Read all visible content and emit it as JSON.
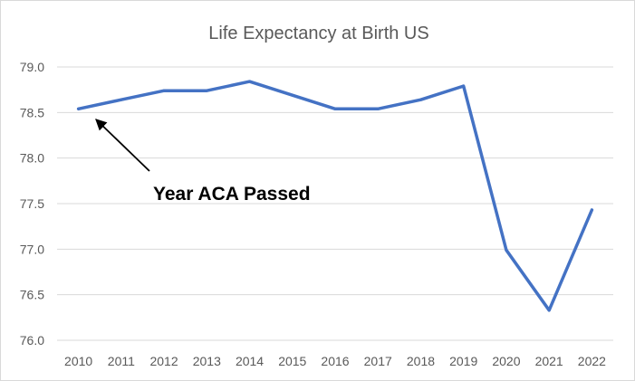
{
  "chart_data": {
    "type": "line",
    "title": "Life Expectancy at Birth US",
    "xlabel": "",
    "ylabel": "",
    "categories": [
      "2010",
      "2011",
      "2012",
      "2013",
      "2014",
      "2015",
      "2016",
      "2017",
      "2018",
      "2019",
      "2020",
      "2021",
      "2022"
    ],
    "series": [
      {
        "values": [
          78.54,
          78.64,
          78.74,
          78.74,
          78.84,
          78.69,
          78.54,
          78.54,
          78.64,
          78.79,
          76.99,
          76.33,
          77.43
        ],
        "color": "#4472c4"
      }
    ],
    "ylim": [
      76.0,
      79.0
    ],
    "yticks": [
      "76.0",
      "76.5",
      "77.0",
      "77.5",
      "78.0",
      "78.5",
      "79.0"
    ],
    "grid": true,
    "legend": "none",
    "annotation": {
      "text": "Year ACA Passed",
      "target_category": "2010",
      "arrow": true
    }
  }
}
